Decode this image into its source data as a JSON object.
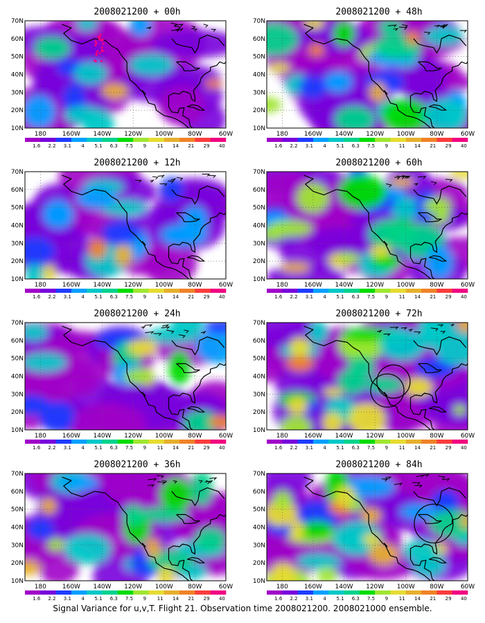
{
  "caption": "Signal Variance for u,v,T. Flight 21. Observation time 2008021200. 2008021000 ensemble.",
  "lat_labels": [
    "10N",
    "20N",
    "30N",
    "40N",
    "50N",
    "60N",
    "70N"
  ],
  "lon_labels": [
    "180",
    "160W",
    "140W",
    "120W",
    "100W",
    "80W",
    "60W"
  ],
  "colorbar": {
    "levels": [
      "1.6",
      "2.2",
      "3.1",
      "4",
      "5.1",
      "6.3",
      "7.5",
      "9",
      "11",
      "14",
      "21",
      "29",
      "40"
    ],
    "colors": [
      "#a000c8",
      "#7800dc",
      "#1e3cff",
      "#00a0ff",
      "#00c8c8",
      "#00d28c",
      "#00dc00",
      "#a0e632",
      "#e6dc32",
      "#e6af2d",
      "#f08228",
      "#fa3c3c",
      "#f00082"
    ]
  },
  "panels": [
    {
      "id": "p00",
      "title": "2008021200 + 00h",
      "intensity": 0.45,
      "col": 0,
      "row": 0,
      "obs_points": true,
      "circles": 0
    },
    {
      "id": "p12",
      "title": "2008021200 + 12h",
      "intensity": 0.55,
      "col": 0,
      "row": 1,
      "obs_points": false,
      "circles": 0
    },
    {
      "id": "p24",
      "title": "2008021200 + 24h",
      "intensity": 0.6,
      "col": 0,
      "row": 2,
      "obs_points": false,
      "circles": 0
    },
    {
      "id": "p36",
      "title": "2008021200 + 36h",
      "intensity": 0.68,
      "col": 0,
      "row": 3,
      "obs_points": false,
      "circles": 0
    },
    {
      "id": "p48",
      "title": "2008021200 + 48h",
      "intensity": 0.75,
      "col": 1,
      "row": 0,
      "obs_points": false,
      "circles": 0
    },
    {
      "id": "p60",
      "title": "2008021200 + 60h",
      "intensity": 0.82,
      "col": 1,
      "row": 1,
      "obs_points": false,
      "circles": 0
    },
    {
      "id": "p72",
      "title": "2008021200 + 72h",
      "intensity": 0.9,
      "col": 1,
      "row": 2,
      "obs_points": false,
      "circles": 2
    },
    {
      "id": "p84",
      "title": "2008021200 + 84h",
      "intensity": 0.95,
      "col": 1,
      "row": 3,
      "obs_points": false,
      "circles": 1
    }
  ]
}
